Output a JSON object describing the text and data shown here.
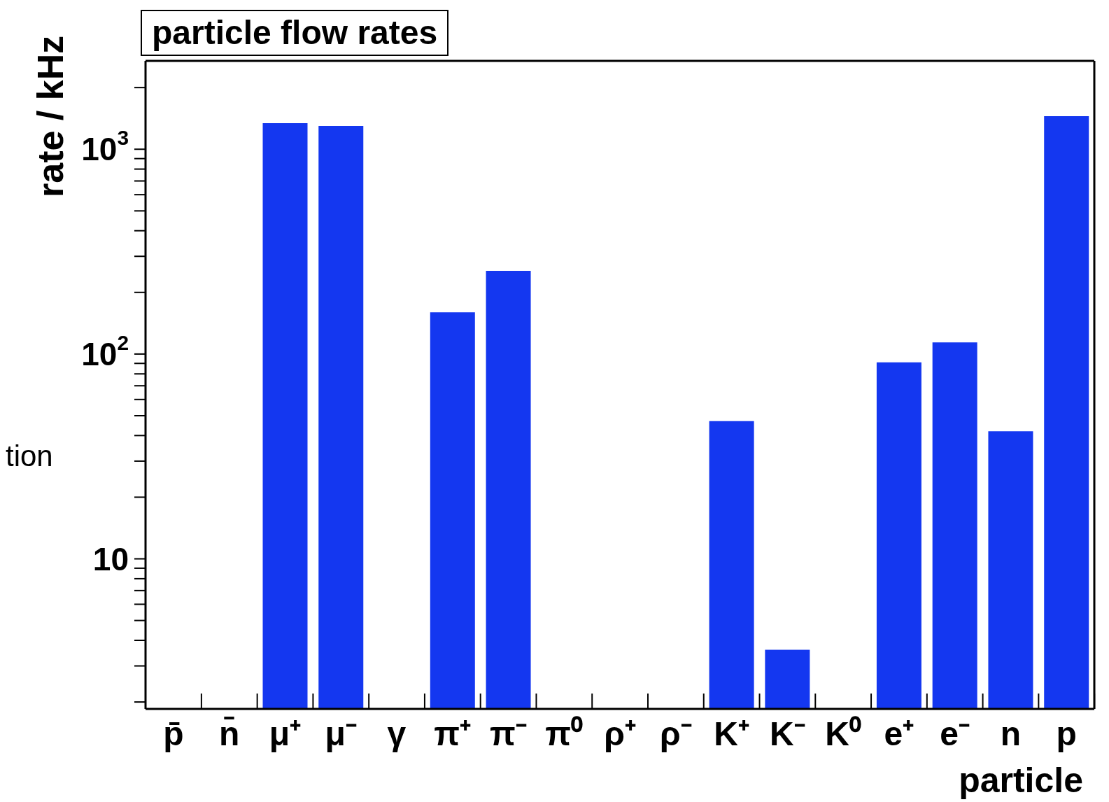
{
  "chart_data": {
    "type": "bar",
    "title": "particle flow rates",
    "xlabel": "particle",
    "ylabel": "rate  /  kHz",
    "categories": [
      "p̄",
      "n̄",
      "μ⁺",
      "μ⁻",
      "γ",
      "π⁺",
      "π⁻",
      "π⁰",
      "ρ⁺",
      "ρ⁻",
      "K⁺",
      "K⁻",
      "K⁰",
      "e⁺",
      "e⁻",
      "n",
      "p"
    ],
    "values": [
      null,
      null,
      1340,
      1300,
      null,
      160,
      255,
      null,
      null,
      null,
      47,
      3.6,
      null,
      91,
      114,
      42,
      1450
    ],
    "color": "#1437f0",
    "log": "y",
    "ylim": [
      1.85,
      2700
    ],
    "yticks": [
      {
        "value": 2,
        "label": null
      },
      {
        "value": 3,
        "label": null
      },
      {
        "value": 4,
        "label": null
      },
      {
        "value": 5,
        "label": null
      },
      {
        "value": 6,
        "label": null
      },
      {
        "value": 7,
        "label": null
      },
      {
        "value": 8,
        "label": null
      },
      {
        "value": 9,
        "label": null
      },
      {
        "value": 10,
        "label": "10"
      },
      {
        "value": 20,
        "label": null
      },
      {
        "value": 30,
        "label": null
      },
      {
        "value": 40,
        "label": null
      },
      {
        "value": 50,
        "label": null
      },
      {
        "value": 60,
        "label": null
      },
      {
        "value": 70,
        "label": null
      },
      {
        "value": 80,
        "label": null
      },
      {
        "value": 90,
        "label": null
      },
      {
        "value": 100,
        "label": "10$^{2}$"
      },
      {
        "value": 200,
        "label": null
      },
      {
        "value": 300,
        "label": null
      },
      {
        "value": 400,
        "label": null
      },
      {
        "value": 500,
        "label": null
      },
      {
        "value": 600,
        "label": null
      },
      {
        "value": 700,
        "label": null
      },
      {
        "value": 800,
        "label": null
      },
      {
        "value": 900,
        "label": null
      },
      {
        "value": 1000,
        "label": "10$^{3}$"
      },
      {
        "value": 2000,
        "label": null
      }
    ],
    "grid": false,
    "legend": false,
    "annotations": [
      "tion"
    ]
  }
}
